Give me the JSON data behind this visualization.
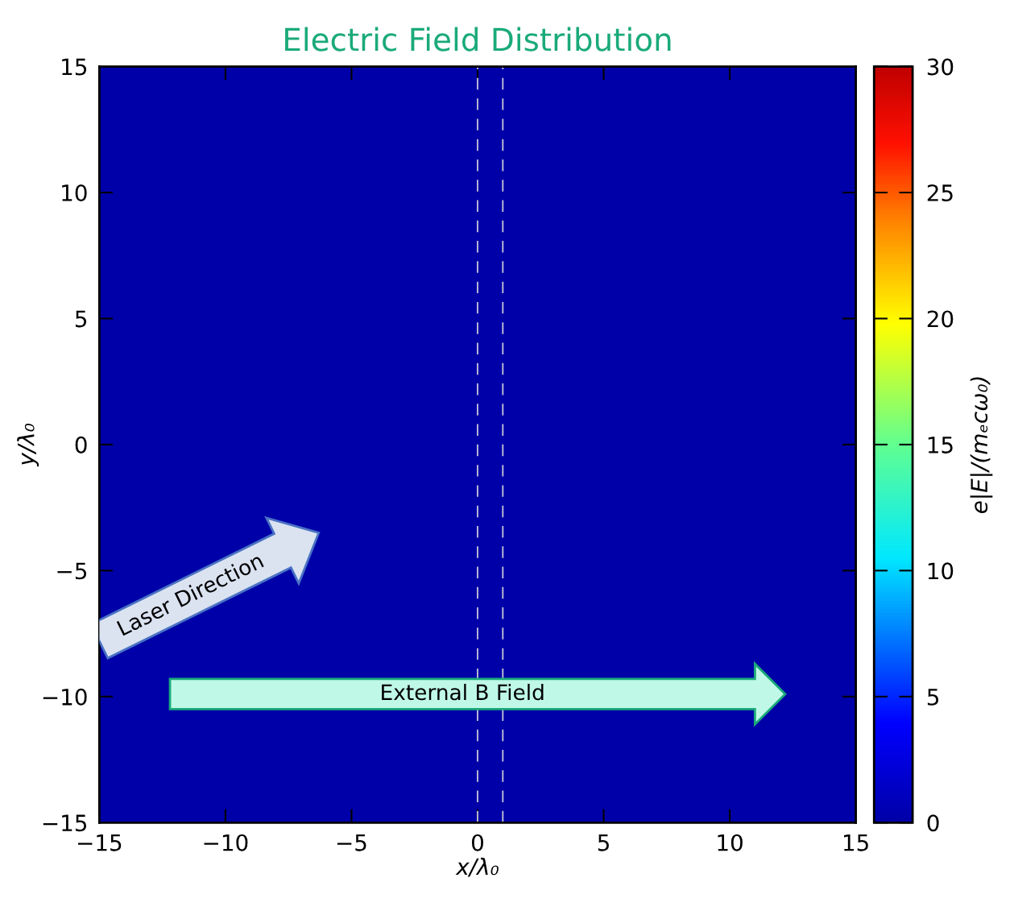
{
  "chart_data": {
    "type": "heatmap",
    "title": "Electric Field Distribution",
    "xlabel": "x/λ₀",
    "ylabel": "y/λ₀",
    "clabel": "e|E|/(mₑcω₀)",
    "cells": [
      [
        0
      ]
    ],
    "xlim": [
      -15,
      15
    ],
    "ylim": [
      -15,
      15
    ],
    "xticks": [
      {
        "value": -15,
        "label": "−15"
      },
      {
        "value": -10,
        "label": "−10"
      },
      {
        "value": -5,
        "label": "−5"
      },
      0,
      5,
      10,
      15
    ],
    "yticks": [
      {
        "value": -15,
        "label": "−15"
      },
      {
        "value": -10,
        "label": "−10"
      },
      {
        "value": -5,
        "label": "−5"
      },
      0,
      5,
      10,
      15
    ],
    "clim": [
      0,
      30
    ],
    "cticks": [
      0,
      5,
      10,
      15,
      20,
      25,
      30
    ],
    "ref_lines": [
      {
        "axis": "x",
        "value": 0,
        "color": "#c8c8d8",
        "line_style": "dashed"
      },
      {
        "axis": "x",
        "value": 1,
        "color": "#c8c8d8",
        "line_style": "dashed"
      }
    ],
    "annotations": [
      "Laser Direction",
      "External B Field"
    ]
  }
}
